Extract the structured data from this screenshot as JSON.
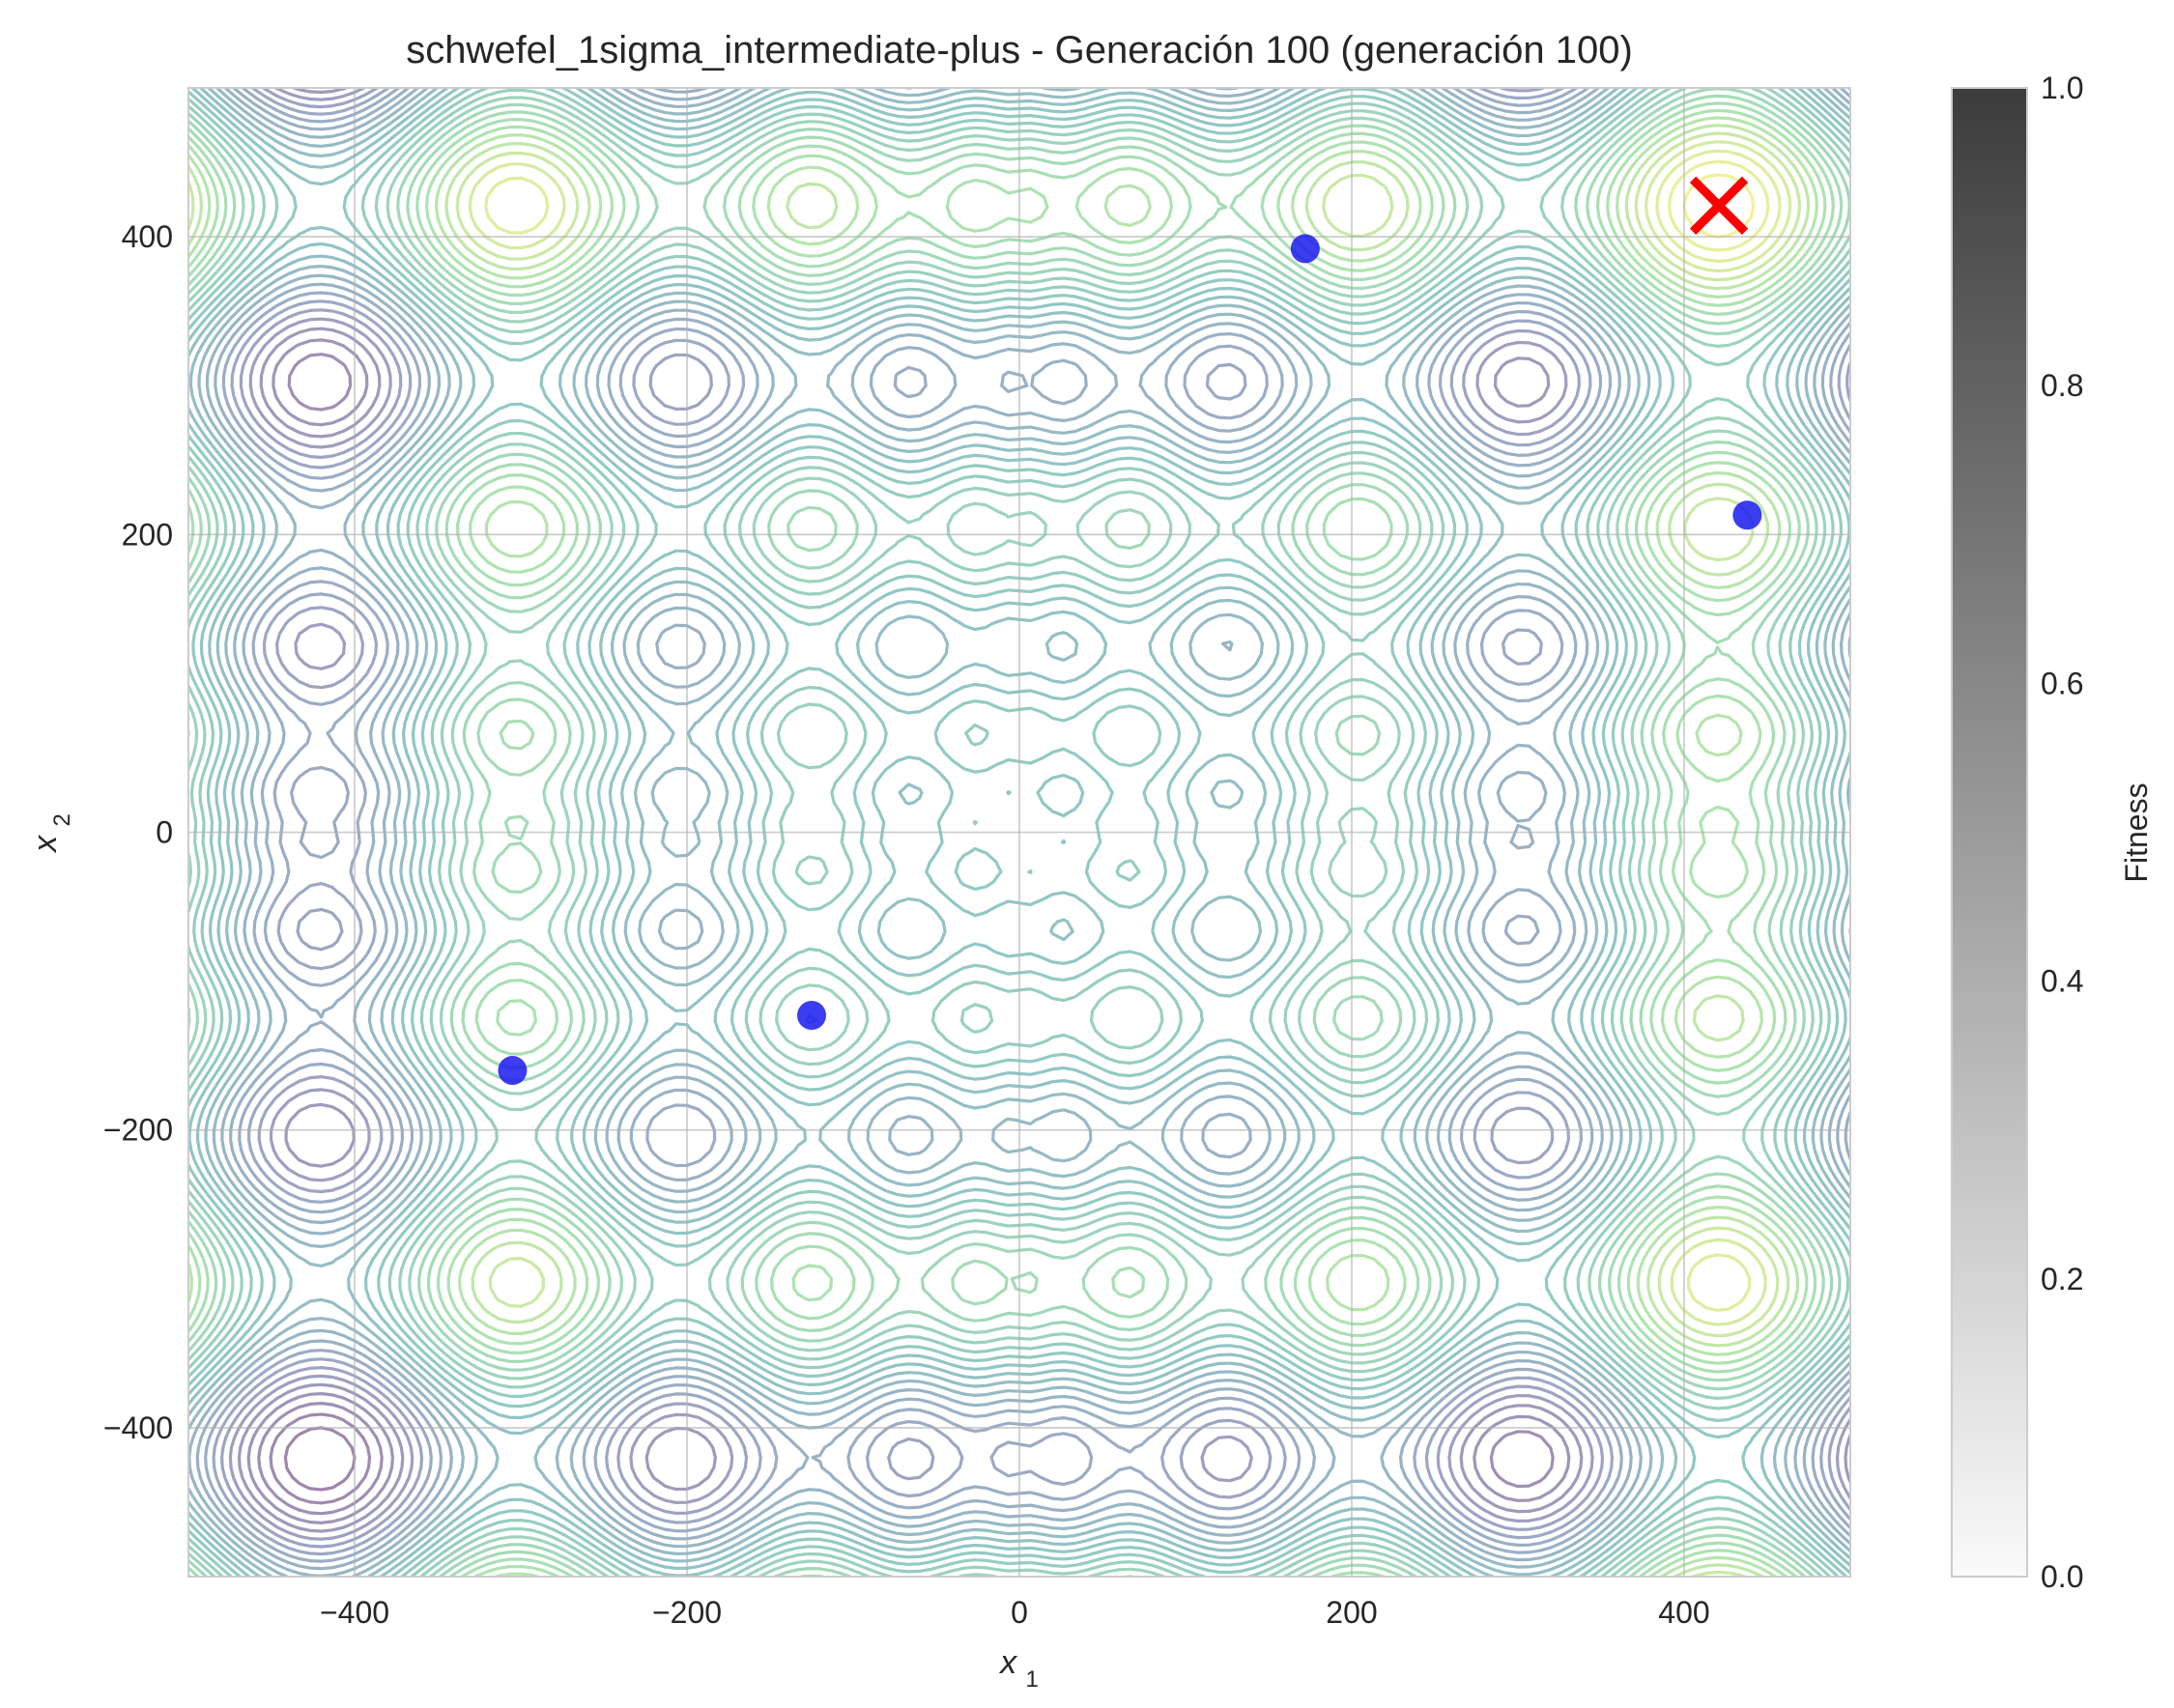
{
  "chart_data": {
    "type": "contour",
    "title": "schwefel_1sigma_intermediate-plus - Generación 100 (generación 100)",
    "xlabel": "x1",
    "ylabel": "x2",
    "xlim": [
      -500,
      500
    ],
    "ylim": [
      -500,
      500
    ],
    "x_ticks": [
      -400,
      -200,
      0,
      200,
      400
    ],
    "y_ticks": [
      -400,
      -200,
      0,
      200,
      400
    ],
    "x_tick_labels": [
      "−400",
      "−200",
      "0",
      "200",
      "400"
    ],
    "y_tick_labels": [
      "−400",
      "−200",
      "0",
      "200",
      "400"
    ],
    "grid": true,
    "background_function": "Schwefel (2D)",
    "contour_colormap": "viridis",
    "population": [
      {
        "x": 172,
        "y": 392
      },
      {
        "x": 438,
        "y": 213
      },
      {
        "x": -125,
        "y": -123
      },
      {
        "x": -305,
        "y": -160
      }
    ],
    "global_optimum": {
      "x": 420.97,
      "y": 420.97
    },
    "colorbar": {
      "label": "Fitness",
      "range": [
        0.0,
        1.0
      ],
      "ticks": [
        0.0,
        0.2,
        0.4,
        0.6,
        0.8,
        1.0
      ],
      "tick_labels": [
        "0.0",
        "0.2",
        "0.4",
        "0.6",
        "0.8",
        "1.0"
      ]
    },
    "colors": {
      "population": "#1a1aee",
      "optimum": "#ff0000",
      "grid": "#b0b0b0",
      "colorbar_top": "#3c3c3c",
      "colorbar_bottom": "#fafafa"
    }
  }
}
